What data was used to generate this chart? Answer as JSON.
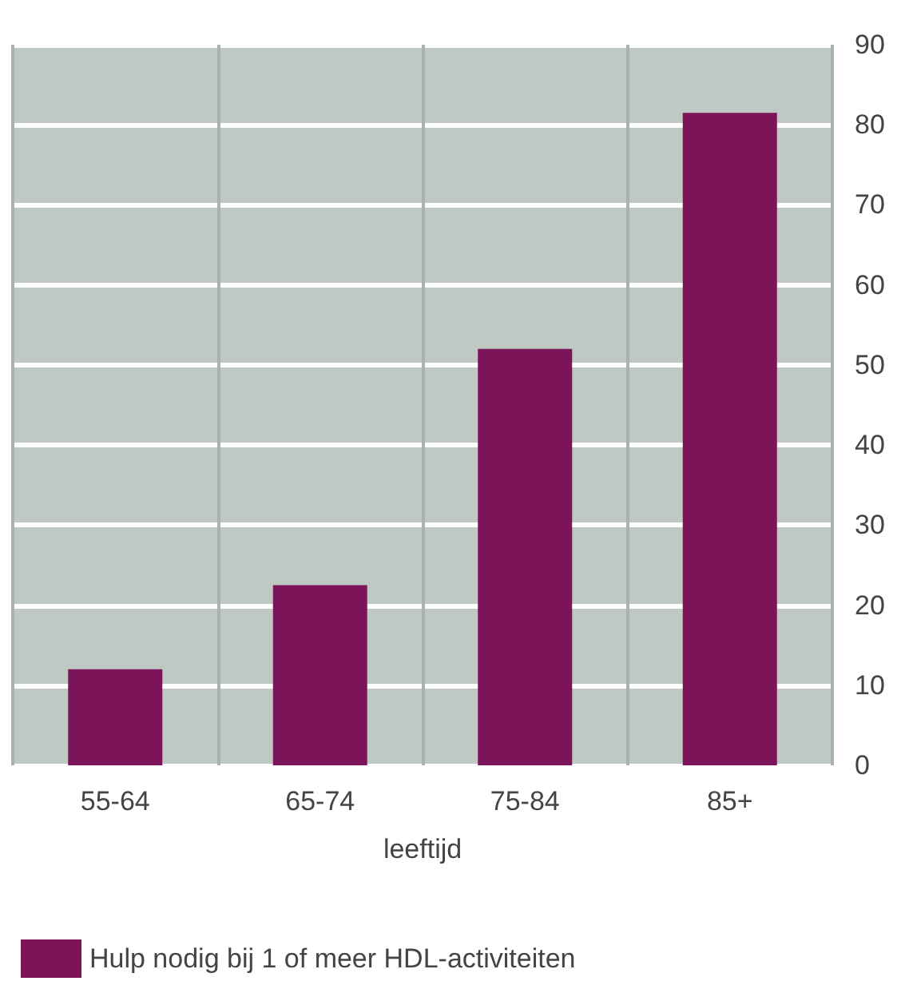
{
  "chart_data": {
    "type": "bar",
    "xlabel": "leeftijd",
    "categories": [
      "55-64",
      "65-74",
      "75-84",
      "85+"
    ],
    "series": [
      {
        "name": "Hulp nodig bij 1 of meer HDL-activiteiten",
        "color": "#7b1459",
        "values": [
          12,
          22.5,
          52,
          81.5
        ]
      }
    ],
    "ylim": [
      0,
      90
    ],
    "yticks": [
      0,
      10,
      20,
      30,
      40,
      50,
      60,
      70,
      80,
      90
    ],
    "grid": true,
    "legend": "bottom left"
  }
}
